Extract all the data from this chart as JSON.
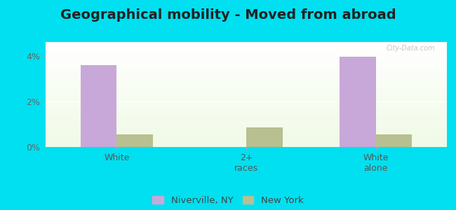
{
  "title": "Geographical mobility - Moved from abroad",
  "categories": [
    "White",
    "2+\nraces",
    "White\nalone"
  ],
  "niverville_values": [
    3.6,
    0.0,
    3.95
  ],
  "newyork_values": [
    0.55,
    0.85,
    0.55
  ],
  "niverville_color": "#c8a8d8",
  "newyork_color": "#b8bf90",
  "ylim": [
    0,
    4.6
  ],
  "yticks": [
    0,
    2,
    4
  ],
  "ytick_labels": [
    "0%",
    "2%",
    "4%"
  ],
  "bar_width": 0.28,
  "outer_color": "#00e0f0",
  "legend_labels": [
    "Niverville, NY",
    "New York"
  ],
  "watermark": "City-Data.com",
  "title_fontsize": 14,
  "label_fontsize": 9
}
